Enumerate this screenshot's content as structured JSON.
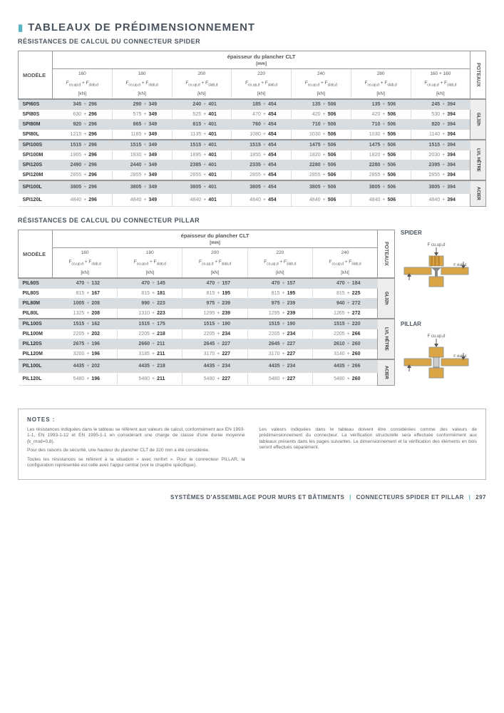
{
  "page_title": "TABLEAUX DE PRÉDIMENSIONNEMENT",
  "spider": {
    "subtitle": "RÉSISTANCES DE CALCUL DU CONNECTEUR SPIDER",
    "col_model": "MODÈLE",
    "main_header": "épaisseur du plancher CLT",
    "main_unit": "[mm]",
    "poteaux": "POTEAUX",
    "thicknesses": [
      "160",
      "180",
      "200",
      "220",
      "240",
      "280",
      "160 + 160"
    ],
    "formula": "F_co,up,d + F_slab,d",
    "unit": "[kN]",
    "groups": [
      {
        "label": "GL32h",
        "rows": [
          {
            "m": "SPI60S",
            "v": [
              [
                "345",
                "296"
              ],
              [
                "290",
                "349"
              ],
              [
                "240",
                "401"
              ],
              [
                "185",
                "454"
              ],
              [
                "135",
                "506"
              ],
              [
                "135",
                "506"
              ],
              [
                "245",
                "394"
              ]
            ]
          },
          {
            "m": "SPI80S",
            "v": [
              [
                "630",
                "296"
              ],
              [
                "575",
                "349"
              ],
              [
                "525",
                "401"
              ],
              [
                "470",
                "454"
              ],
              [
                "420",
                "506"
              ],
              [
                "420",
                "506"
              ],
              [
                "530",
                "394"
              ]
            ]
          },
          {
            "m": "SPI80M",
            "v": [
              [
                "920",
                "296"
              ],
              [
                "865",
                "349"
              ],
              [
                "815",
                "401"
              ],
              [
                "760",
                "454"
              ],
              [
                "710",
                "506"
              ],
              [
                "710",
                "506"
              ],
              [
                "820",
                "394"
              ]
            ]
          },
          {
            "m": "SPI80L",
            "v": [
              [
                "1215",
                "296"
              ],
              [
                "1185",
                "349"
              ],
              [
                "1135",
                "401"
              ],
              [
                "1080",
                "454"
              ],
              [
                "1030",
                "506"
              ],
              [
                "1030",
                "506"
              ],
              [
                "1140",
                "394"
              ]
            ]
          }
        ]
      },
      {
        "label": "LVL HÊTRE",
        "rows": [
          {
            "m": "SPI100S",
            "v": [
              [
                "1515",
                "296"
              ],
              [
                "1515",
                "349"
              ],
              [
                "1515",
                "401"
              ],
              [
                "1515",
                "454"
              ],
              [
                "1475",
                "506"
              ],
              [
                "1475",
                "506"
              ],
              [
                "1515",
                "394"
              ]
            ]
          },
          {
            "m": "SPI100M",
            "v": [
              [
                "1965",
                "296"
              ],
              [
                "1930",
                "349"
              ],
              [
                "1895",
                "401"
              ],
              [
                "1855",
                "454"
              ],
              [
                "1820",
                "506"
              ],
              [
                "1820",
                "506"
              ],
              [
                "2030",
                "394"
              ]
            ]
          },
          {
            "m": "SPI120S",
            "v": [
              [
                "2490",
                "296"
              ],
              [
                "2440",
                "349"
              ],
              [
                "2385",
                "401"
              ],
              [
                "2335",
                "454"
              ],
              [
                "2280",
                "506"
              ],
              [
                "2280",
                "506"
              ],
              [
                "2395",
                "394"
              ]
            ]
          },
          {
            "m": "SPI120M",
            "v": [
              [
                "2855",
                "296"
              ],
              [
                "2855",
                "349"
              ],
              [
                "2855",
                "401"
              ],
              [
                "2855",
                "454"
              ],
              [
                "2855",
                "506"
              ],
              [
                "2855",
                "506"
              ],
              [
                "2855",
                "394"
              ]
            ]
          }
        ]
      },
      {
        "label": "ACIER",
        "rows": [
          {
            "m": "SPI100L",
            "v": [
              [
                "3805",
                "296"
              ],
              [
                "3805",
                "349"
              ],
              [
                "3805",
                "401"
              ],
              [
                "3805",
                "454"
              ],
              [
                "3805",
                "506"
              ],
              [
                "3805",
                "506"
              ],
              [
                "3805",
                "394"
              ]
            ]
          },
          {
            "m": "SPI120L",
            "v": [
              [
                "4840",
                "296"
              ],
              [
                "4840",
                "349"
              ],
              [
                "4840",
                "401"
              ],
              [
                "4840",
                "454"
              ],
              [
                "4840",
                "506"
              ],
              [
                "4840",
                "506"
              ],
              [
                "4840",
                "394"
              ]
            ]
          }
        ]
      }
    ]
  },
  "pillar": {
    "subtitle": "RÉSISTANCES DE CALCUL DU CONNECTEUR PILLAR",
    "col_model": "MODÈLE",
    "main_header": "épaisseur du plancher CLT",
    "main_unit": "[mm]",
    "poteaux": "POTEAUX",
    "thicknesses": [
      "160",
      "180",
      "200",
      "220",
      "240"
    ],
    "formula": "F_co,up,d + F_slab,d",
    "unit": "[kN]",
    "groups": [
      {
        "label": "GL32h",
        "rows": [
          {
            "m": "PIL60S",
            "v": [
              [
                "470",
                "132"
              ],
              [
                "470",
                "145"
              ],
              [
                "470",
                "157"
              ],
              [
                "470",
                "157"
              ],
              [
                "470",
                "184"
              ]
            ]
          },
          {
            "m": "PIL80S",
            "v": [
              [
                "815",
                "167"
              ],
              [
                "815",
                "181"
              ],
              [
                "815",
                "195"
              ],
              [
                "815",
                "195"
              ],
              [
                "815",
                "225"
              ]
            ]
          },
          {
            "m": "PIL80M",
            "v": [
              [
                "1005",
                "208"
              ],
              [
                "990",
                "223"
              ],
              [
                "975",
                "239"
              ],
              [
                "975",
                "239"
              ],
              [
                "940",
                "272"
              ]
            ]
          },
          {
            "m": "PIL80L",
            "v": [
              [
                "1325",
                "208"
              ],
              [
                "1310",
                "223"
              ],
              [
                "1295",
                "239"
              ],
              [
                "1295",
                "239"
              ],
              [
                "1265",
                "272"
              ]
            ]
          }
        ]
      },
      {
        "label": "LVL HÊTRE",
        "rows": [
          {
            "m": "PIL100S",
            "v": [
              [
                "1515",
                "162"
              ],
              [
                "1515",
                "175"
              ],
              [
                "1515",
                "190"
              ],
              [
                "1515",
                "190"
              ],
              [
                "1515",
                "220"
              ]
            ]
          },
          {
            "m": "PIL100M",
            "v": [
              [
                "2205",
                "202"
              ],
              [
                "2205",
                "218"
              ],
              [
                "2205",
                "234"
              ],
              [
                "2205",
                "234"
              ],
              [
                "2205",
                "266"
              ]
            ]
          },
          {
            "m": "PIL120S",
            "v": [
              [
                "2675",
                "196"
              ],
              [
                "2660",
                "211"
              ],
              [
                "2645",
                "227"
              ],
              [
                "2645",
                "227"
              ],
              [
                "2610",
                "260"
              ]
            ]
          },
          {
            "m": "PIL120M",
            "v": [
              [
                "3200",
                "196"
              ],
              [
                "3185",
                "211"
              ],
              [
                "3170",
                "227"
              ],
              [
                "3170",
                "227"
              ],
              [
                "3140",
                "260"
              ]
            ]
          }
        ]
      },
      {
        "label": "ACIER",
        "rows": [
          {
            "m": "PIL100L",
            "v": [
              [
                "4435",
                "202"
              ],
              [
                "4435",
                "218"
              ],
              [
                "4435",
                "234"
              ],
              [
                "4435",
                "234"
              ],
              [
                "4435",
                "266"
              ]
            ]
          },
          {
            "m": "PIL120L",
            "v": [
              [
                "5480",
                "196"
              ],
              [
                "5480",
                "211"
              ],
              [
                "5480",
                "227"
              ],
              [
                "5480",
                "227"
              ],
              [
                "5480",
                "260"
              ]
            ]
          }
        ]
      }
    ]
  },
  "diagrams": {
    "spider_title": "SPIDER",
    "pillar_title": "PILLAR",
    "f_top": "F_co,up,d",
    "f_side": "F_slab,d",
    "wood_color": "#d9a441",
    "steel_color": "#888888"
  },
  "notes": {
    "title": "NOTES :",
    "left": [
      "Les résistances indiquées dans le tableau se réfèrent aux valeurs de calcul, conformément aux EN 1993-1-1, EN 1993-1-12 et EN 1995-1-1 en considérant une charge de classe d'une durée moyenne (k_mod=0,8).",
      "Pour des raisons de sécurité, une hauteur du plancher CLT de 320 mm a été considérée.",
      "Toutes les résistances se réfèrent à la situation « avec renfort ». Pour le connecteur PILLAR, la configuration représentée est celle avec l'appui central (voir le chapitre spécifique)."
    ],
    "right": [
      "Les valeurs indiquées dans le tableau doivent être considérées comme des valeurs de prédimensionnement du connecteur. La vérification structurelle sera effectuée conformément aux tableaux présents dans les pages suivantes. Le dimensionnement et la vérification des éléments en bois seront effectués séparément."
    ]
  },
  "footer": {
    "left": "SYSTÈMES D'ASSEMBLAGE POUR MURS ET BÂTIMENTS",
    "right": "CONNECTEURS SPIDER ET PILLAR",
    "page": "297"
  }
}
